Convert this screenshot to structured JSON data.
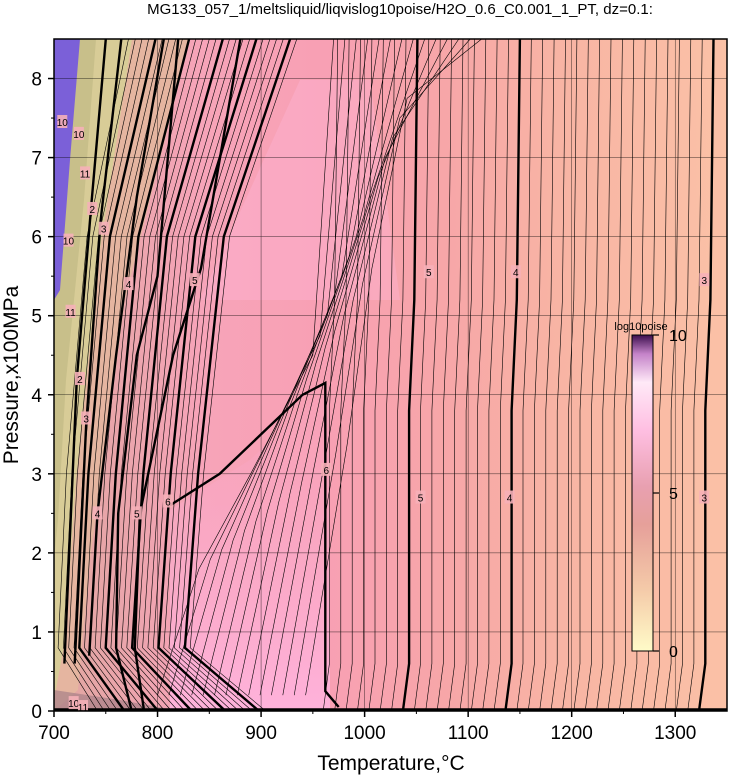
{
  "chart_data": {
    "type": "heatmap",
    "title": "MG133_057_1/meltsliquid/liqvislog10poise/H2O_0.6_C0.001_1_PT, dz=0.1:",
    "xlabel": "Temperature,°C",
    "ylabel": "Pressure,x100MPa",
    "xlim": [
      700,
      1350
    ],
    "ylim": [
      0,
      8.5
    ],
    "x_ticks": [
      "700",
      "800",
      "900",
      "1000",
      "1100",
      "1200",
      "1300"
    ],
    "y_ticks": [
      "0",
      "1",
      "2",
      "3",
      "4",
      "5",
      "6",
      "7",
      "8"
    ],
    "grid": true,
    "colorbar": {
      "label": "log10poise",
      "range": [
        0,
        10
      ],
      "ticks": [
        "0",
        "5",
        "10"
      ],
      "colors": [
        "#fffbc8",
        "#f4bfa0",
        "#e59aa0",
        "#ffb8de",
        "#ffe8f6",
        "#3d0f4e"
      ],
      "placement": "right inside plot"
    },
    "contour_labels": [
      {
        "label": "3",
        "x": 1328,
        "y": 5.45
      },
      {
        "label": "3",
        "x": 1328,
        "y": 2.7
      },
      {
        "label": "4",
        "x": 1146,
        "y": 5.55
      },
      {
        "label": "4",
        "x": 1140,
        "y": 2.7
      },
      {
        "label": "5",
        "x": 1062,
        "y": 5.55
      },
      {
        "label": "5",
        "x": 1054,
        "y": 2.7
      },
      {
        "label": "6",
        "x": 963,
        "y": 3.05
      },
      {
        "label": "6",
        "x": 810,
        "y": 2.65
      },
      {
        "label": "5",
        "x": 780,
        "y": 2.5
      },
      {
        "label": "5",
        "x": 836,
        "y": 5.45
      },
      {
        "label": "4",
        "x": 742,
        "y": 2.5
      },
      {
        "label": "4",
        "x": 772,
        "y": 5.4
      },
      {
        "label": "3",
        "x": 731,
        "y": 3.7
      },
      {
        "label": "3",
        "x": 748,
        "y": 6.1
      },
      {
        "label": "2",
        "x": 725,
        "y": 4.2
      },
      {
        "label": "2",
        "x": 737,
        "y": 6.35
      },
      {
        "label": "11",
        "x": 716,
        "y": 5.05
      },
      {
        "label": "11",
        "x": 730,
        "y": 6.8
      },
      {
        "label": "10",
        "x": 714,
        "y": 5.95
      },
      {
        "label": "10",
        "x": 724,
        "y": 7.3
      },
      {
        "label": "10",
        "x": 708,
        "y": 7.45
      },
      {
        "label": "10",
        "x": 719,
        "y": 0.1
      },
      {
        "label": "11",
        "x": 728,
        "y": 0.05
      }
    ]
  }
}
